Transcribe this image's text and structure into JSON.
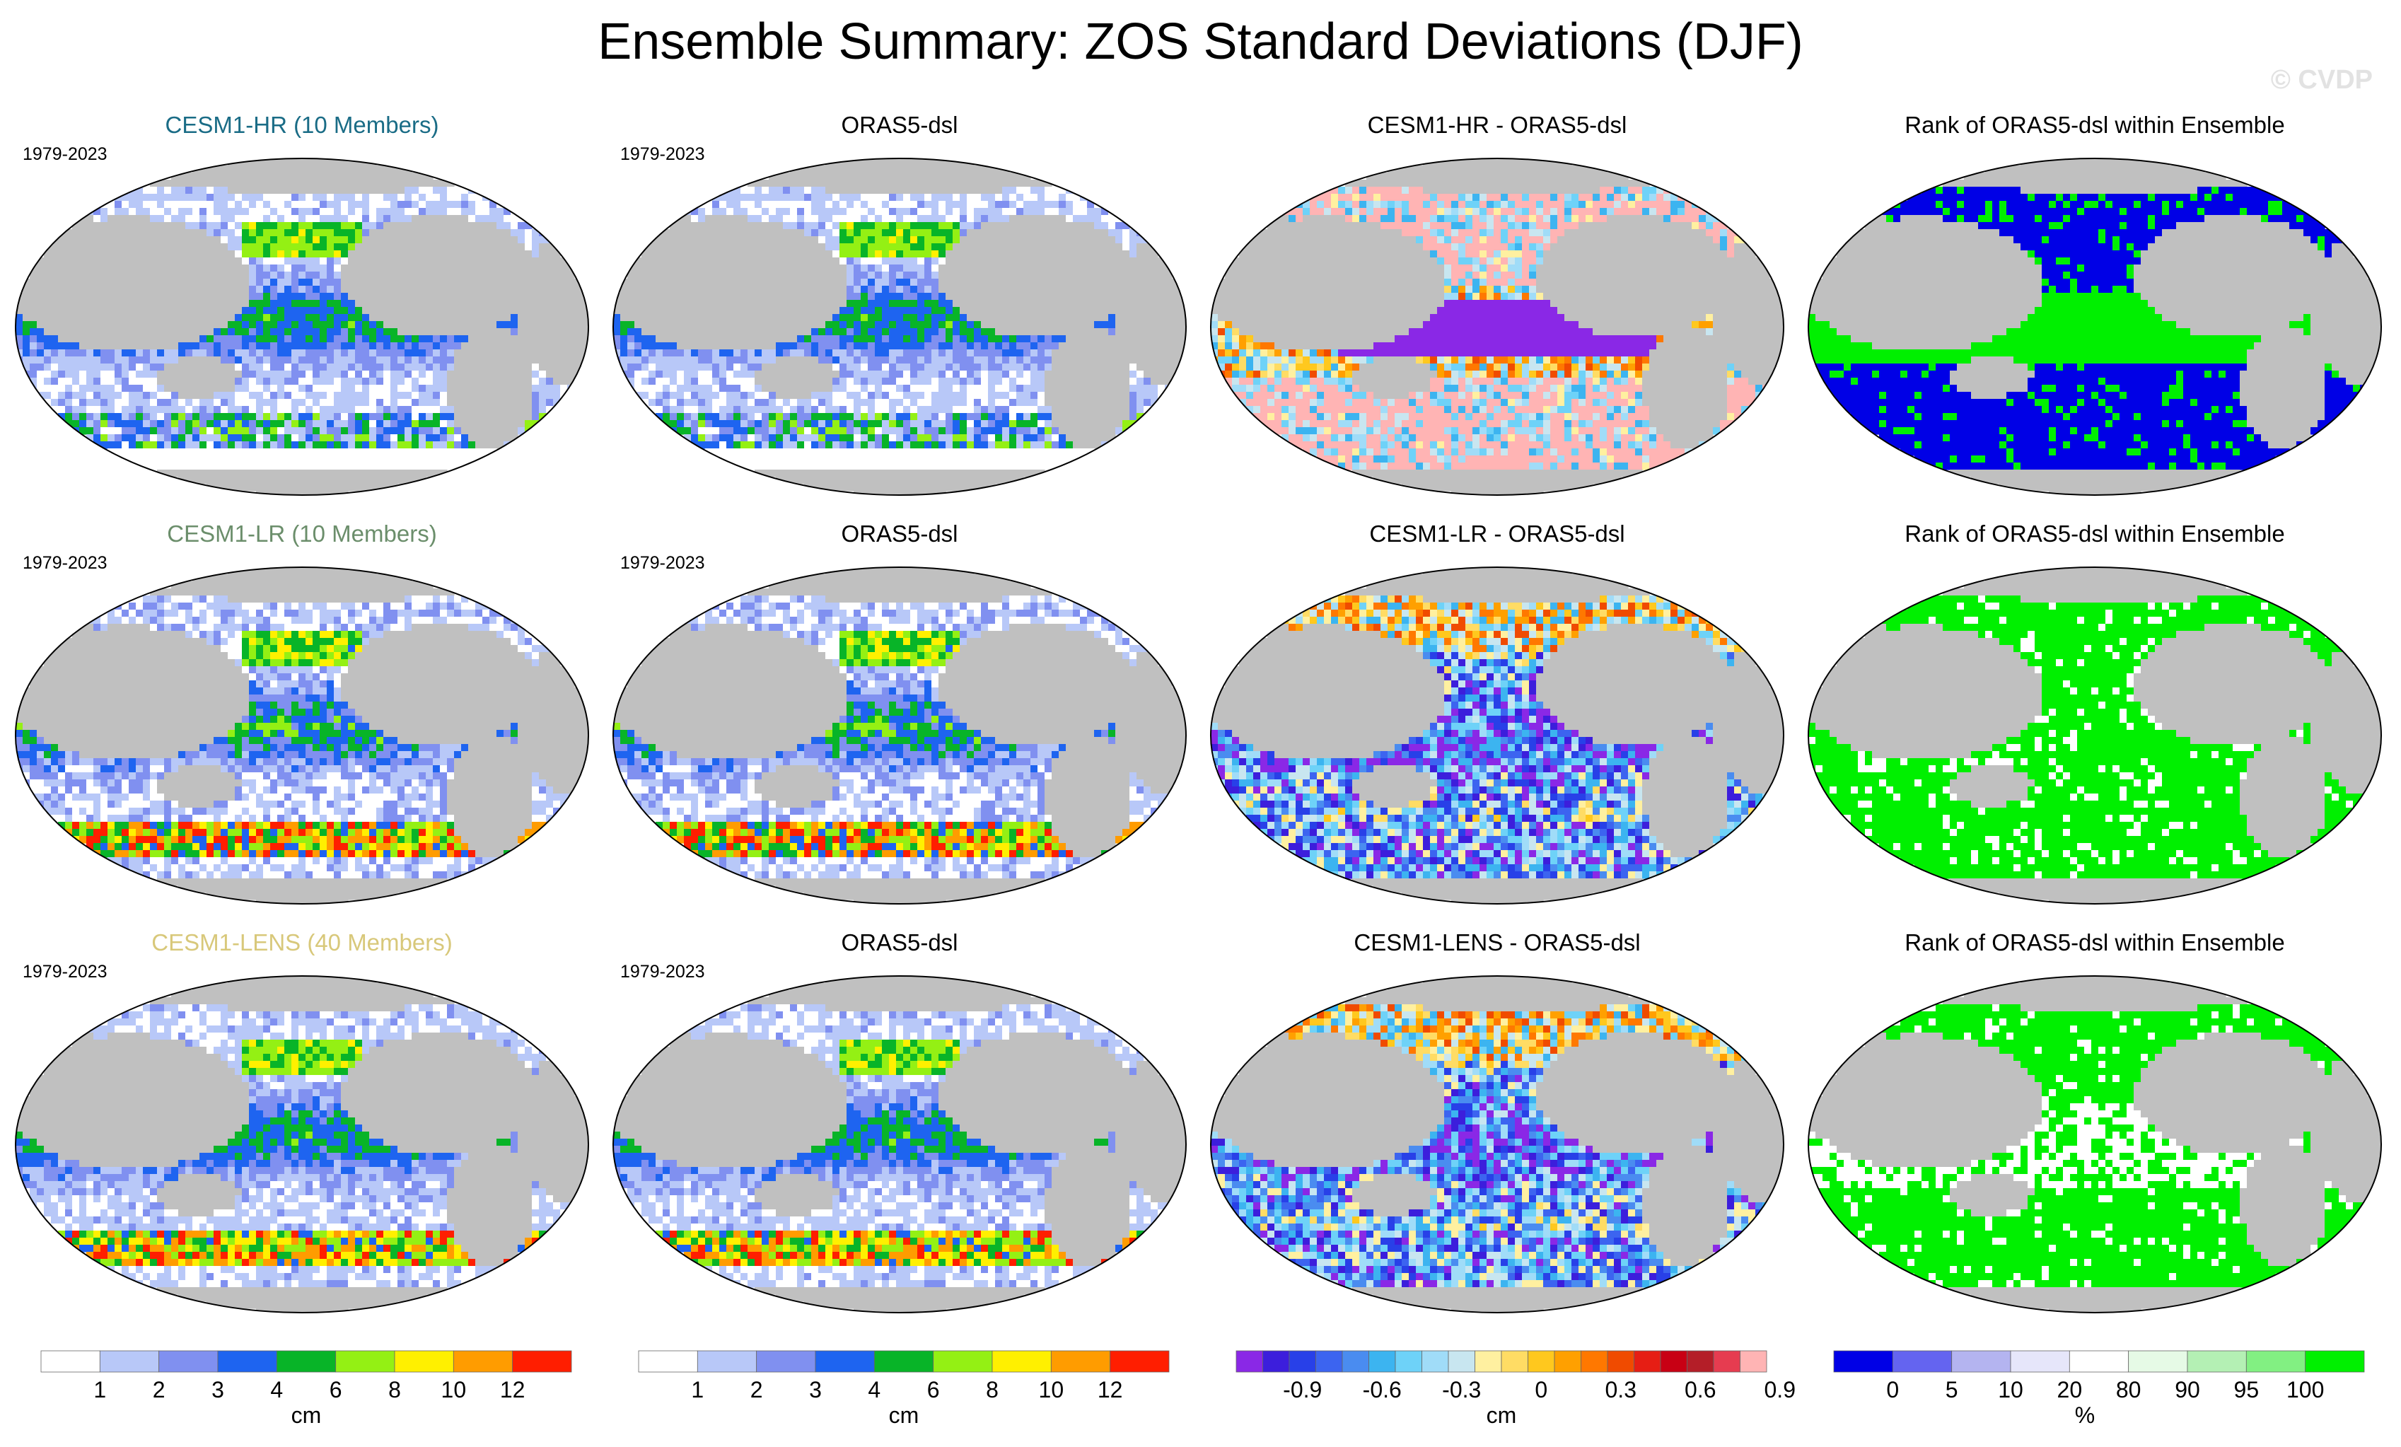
{
  "title": "Ensemble Summary: ZOS Standard Deviations (DJF)",
  "watermark": "© CVDP",
  "chart_data": [
    {
      "type": "heatmap",
      "row": 0,
      "col": 0,
      "title": "CESM1-HR (10 Members)",
      "title_color": "#1a6c86",
      "period": "1979-2023",
      "variable": "ZOS standard deviation",
      "units": "cm",
      "colorbar": "sd"
    },
    {
      "type": "heatmap",
      "row": 0,
      "col": 1,
      "title": "ORAS5-dsl",
      "title_color": "#000000",
      "period": "1979-2023",
      "variable": "ZOS standard deviation",
      "units": "cm",
      "colorbar": "sd"
    },
    {
      "type": "heatmap",
      "row": 0,
      "col": 2,
      "title": "CESM1-HR - ORAS5-dsl",
      "title_color": "#000000",
      "period": "",
      "variable": "difference",
      "units": "cm",
      "colorbar": "diff"
    },
    {
      "type": "heatmap",
      "row": 0,
      "col": 3,
      "title": "Rank of ORAS5-dsl within Ensemble",
      "title_color": "#000000",
      "period": "",
      "variable": "rank",
      "units": "%",
      "colorbar": "rank"
    },
    {
      "type": "heatmap",
      "row": 1,
      "col": 0,
      "title": "CESM1-LR (10 Members)",
      "title_color": "#6b8e6b",
      "period": "1979-2023",
      "variable": "ZOS standard deviation",
      "units": "cm",
      "colorbar": "sd"
    },
    {
      "type": "heatmap",
      "row": 1,
      "col": 1,
      "title": "ORAS5-dsl",
      "title_color": "#000000",
      "period": "1979-2023",
      "variable": "ZOS standard deviation",
      "units": "cm",
      "colorbar": "sd"
    },
    {
      "type": "heatmap",
      "row": 1,
      "col": 2,
      "title": "CESM1-LR - ORAS5-dsl",
      "title_color": "#000000",
      "period": "",
      "variable": "difference",
      "units": "cm",
      "colorbar": "diff"
    },
    {
      "type": "heatmap",
      "row": 1,
      "col": 3,
      "title": "Rank of ORAS5-dsl within Ensemble",
      "title_color": "#000000",
      "period": "",
      "variable": "rank",
      "units": "%",
      "colorbar": "rank"
    },
    {
      "type": "heatmap",
      "row": 2,
      "col": 0,
      "title": "CESM1-LENS (40 Members)",
      "title_color": "#d8c87a",
      "period": "1979-2023",
      "variable": "ZOS standard deviation",
      "units": "cm",
      "colorbar": "sd"
    },
    {
      "type": "heatmap",
      "row": 2,
      "col": 1,
      "title": "ORAS5-dsl",
      "title_color": "#000000",
      "period": "1979-2023",
      "variable": "ZOS standard deviation",
      "units": "cm",
      "colorbar": "sd"
    },
    {
      "type": "heatmap",
      "row": 2,
      "col": 2,
      "title": "CESM1-LENS - ORAS5-dsl",
      "title_color": "#000000",
      "period": "",
      "variable": "difference",
      "units": "cm",
      "colorbar": "diff"
    },
    {
      "type": "heatmap",
      "row": 2,
      "col": 3,
      "title": "Rank of ORAS5-dsl within Ensemble",
      "title_color": "#000000",
      "period": "",
      "variable": "rank",
      "units": "%",
      "colorbar": "rank"
    }
  ],
  "colorbars": {
    "sd": {
      "units": "cm",
      "colors": [
        "#ffffff",
        "#b8c8f8",
        "#8090f0",
        "#1e64f0",
        "#08b428",
        "#94f014",
        "#fff000",
        "#ff9c00",
        "#ff1e00"
      ],
      "tick_labels": [
        "1",
        "2",
        "3",
        "4",
        "6",
        "8",
        "10",
        "12"
      ]
    },
    "diff": {
      "units": "cm",
      "colors": [
        "#8a28e6",
        "#3c1edc",
        "#2840e8",
        "#3c64f0",
        "#4a8cf0",
        "#3cb4f0",
        "#6ed2f8",
        "#a0dcf8",
        "#c8e6f0",
        "#fff0a0",
        "#ffdc64",
        "#ffc81e",
        "#ffa000",
        "#ff7800",
        "#f04b00",
        "#e61e14",
        "#c80014",
        "#b41e28",
        "#e63c50",
        "#ffb4b4"
      ],
      "tick_labels": [
        "-0.9",
        "-0.6",
        "-0.3",
        "0",
        "0.3",
        "0.6",
        "0.9"
      ]
    },
    "rank": {
      "units": "%",
      "colors": [
        "#0000e6",
        "#6464f0",
        "#b4b4f0",
        "#e6e6fa",
        "#ffffff",
        "#e6fae6",
        "#b4f0b4",
        "#82f082",
        "#00f000"
      ],
      "tick_labels": [
        "0",
        "5",
        "10",
        "20",
        "80",
        "90",
        "95",
        "100"
      ]
    }
  }
}
